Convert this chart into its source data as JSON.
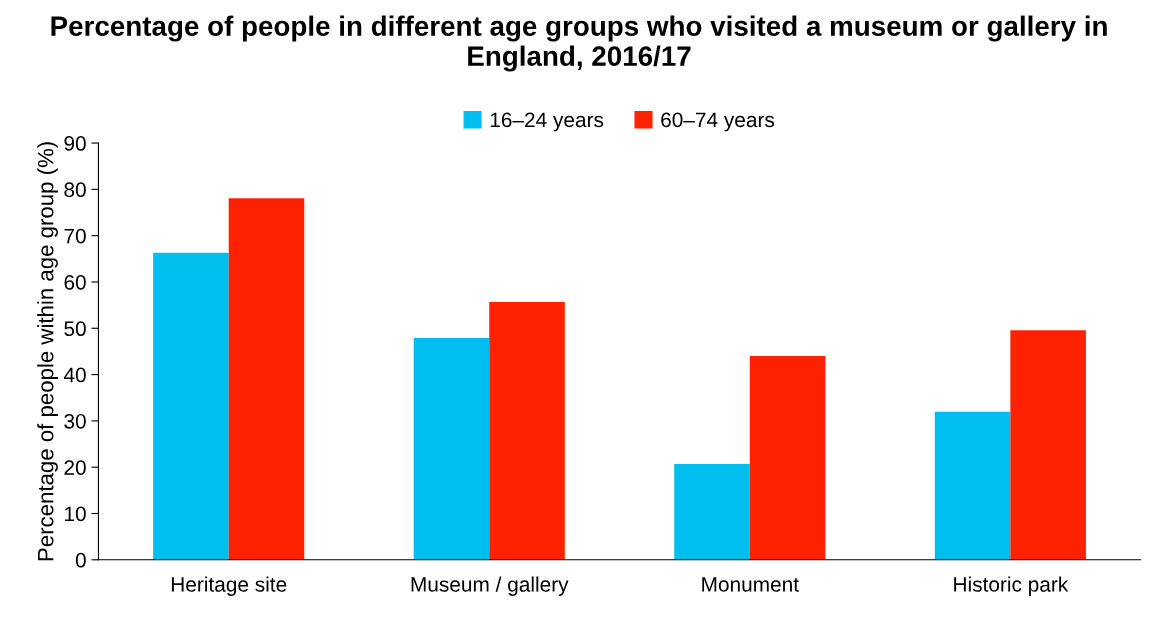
{
  "chart_data": {
    "type": "bar",
    "title": "Percentage of people in different age groups who visited a museum or gallery in England, 2016/17",
    "ylabel": "Percentage of people within age group (%)",
    "categories": [
      "Heritage site",
      "Museum / gallery",
      "Monument",
      "Historic park"
    ],
    "series": [
      {
        "name": "16–24 years",
        "color": "#00bff0",
        "values": [
          66.3,
          47.9,
          20.7,
          32.0
        ]
      },
      {
        "name": "60–74 years",
        "color": "#ff2200",
        "values": [
          78.1,
          55.7,
          44.0,
          49.6
        ]
      }
    ],
    "ylim": [
      0,
      90
    ],
    "yticks": [
      0,
      10,
      20,
      30,
      40,
      50,
      60,
      70,
      80,
      90
    ],
    "grid": false,
    "legend": "top"
  }
}
